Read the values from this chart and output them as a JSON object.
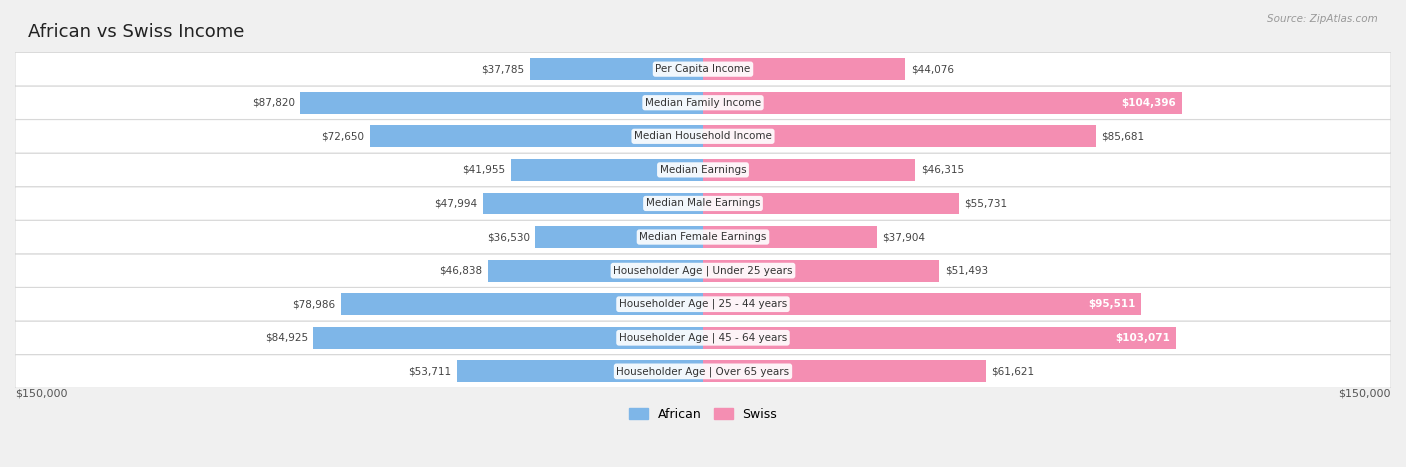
{
  "title": "African vs Swiss Income",
  "source": "Source: ZipAtlas.com",
  "categories": [
    "Per Capita Income",
    "Median Family Income",
    "Median Household Income",
    "Median Earnings",
    "Median Male Earnings",
    "Median Female Earnings",
    "Householder Age | Under 25 years",
    "Householder Age | 25 - 44 years",
    "Householder Age | 45 - 64 years",
    "Householder Age | Over 65 years"
  ],
  "african_values": [
    37785,
    87820,
    72650,
    41955,
    47994,
    36530,
    46838,
    78986,
    84925,
    53711
  ],
  "swiss_values": [
    44076,
    104396,
    85681,
    46315,
    55731,
    37904,
    51493,
    95511,
    103071,
    61621
  ],
  "african_color": "#7EB6E8",
  "swiss_color": "#F48EB2",
  "background_color": "#f0f0f0",
  "row_bg_color": "#ffffff",
  "max_value": 150000,
  "xlabel_left": "$150,000",
  "xlabel_right": "$150,000",
  "swiss_white_threshold": 0.6
}
